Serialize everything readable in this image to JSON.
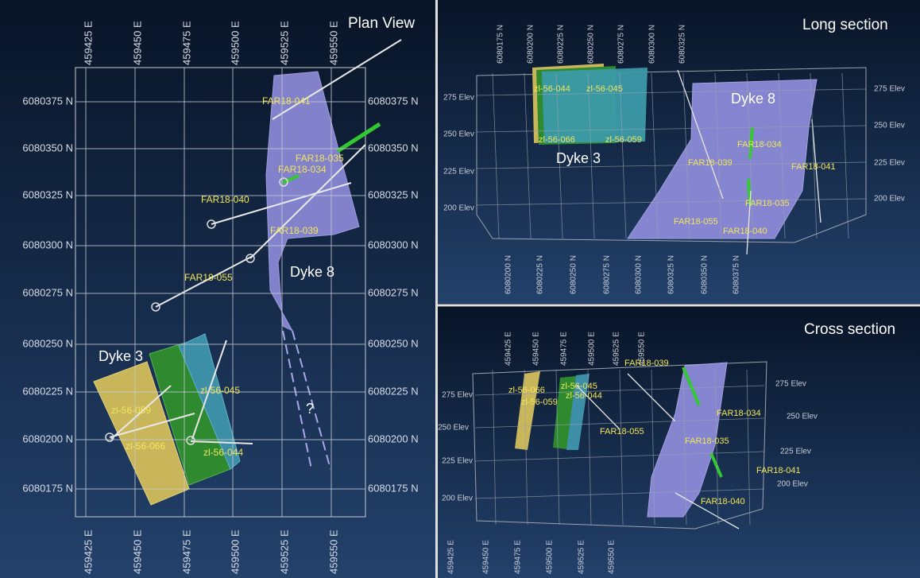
{
  "plan_view": {
    "title": "Plan View",
    "top_axis": [
      "459425 E",
      "459450 E",
      "459475 E",
      "459500 E",
      "459525 E",
      "459550 E"
    ],
    "bottom_axis": [
      "459425 E",
      "459450 E",
      "459475 E",
      "459500 E",
      "459525 E",
      "459550 E"
    ],
    "left_axis": [
      "6080375 N",
      "6080350 N",
      "6080325 N",
      "6080300 N",
      "6080275 N",
      "6080250 N",
      "6080225 N",
      "6080200 N",
      "6080175 N"
    ],
    "right_axis": [
      "6080375 N",
      "6080350 N",
      "6080325 N",
      "6080300 N",
      "6080275 N",
      "6080250 N",
      "6080225 N",
      "6080200 N",
      "6080175 N"
    ],
    "labels": [
      "FAR18-041",
      "FAR18-035",
      "FAR18-034",
      "FAR18-040",
      "FAR18-039",
      "FAR18-055",
      "zl-56-059",
      "zl-56-045",
      "zl-56-066",
      "zl-56-044"
    ],
    "dykes": [
      "Dyke 8",
      "Dyke 3"
    ],
    "unknown_marker": "?"
  },
  "long_section": {
    "title": "Long section",
    "top_axis": [
      "6080175 N",
      "6080200 N",
      "6080225 N",
      "6080250 N",
      "6080275 N",
      "6080300 N",
      "6080325 N"
    ],
    "bottom_axis": [
      "6080200 N",
      "6080225 N",
      "6080250 N",
      "6080275 N",
      "6080300 N",
      "6080325 N",
      "6080350 N",
      "6080375 N"
    ],
    "left_axis": [
      "275 Elev",
      "250 Elev",
      "225 Elev",
      "200 Elev"
    ],
    "right_axis": [
      "275 Elev",
      "250 Elev",
      "225 Elev",
      "200 Elev"
    ],
    "labels": [
      "zl-56-044",
      "zl-56-045",
      "zl-56-066",
      "zl-56-059",
      "FAR18-034",
      "FAR18-039",
      "FAR18-041",
      "FAR18-035",
      "FAR18-055",
      "FAR18-040"
    ],
    "dykes": [
      "Dyke 8",
      "Dyke 3"
    ]
  },
  "cross_section": {
    "title": "Cross section",
    "top_axis": [
      "459425 E",
      "459450 E",
      "459475 E",
      "459500 E",
      "459525 E",
      "459550 E"
    ],
    "bottom_axis": [
      "459425 E",
      "459450 E",
      "459475 E",
      "459500 E",
      "459525 E",
      "459550 E"
    ],
    "left_axis": [
      "275 Elev",
      "250 Elev",
      "225 Elev",
      "200 Elev"
    ],
    "right_axis": [
      "275 Elev",
      "250 Elev",
      "225 Elev",
      "200 Elev"
    ],
    "labels": [
      "zl-56-066",
      "zl-56-045",
      "zl-56-044",
      "zl-56-059",
      "FAR18-055",
      "FAR18-039",
      "FAR18-034",
      "FAR18-035",
      "FAR18-041",
      "FAR18-040"
    ]
  }
}
